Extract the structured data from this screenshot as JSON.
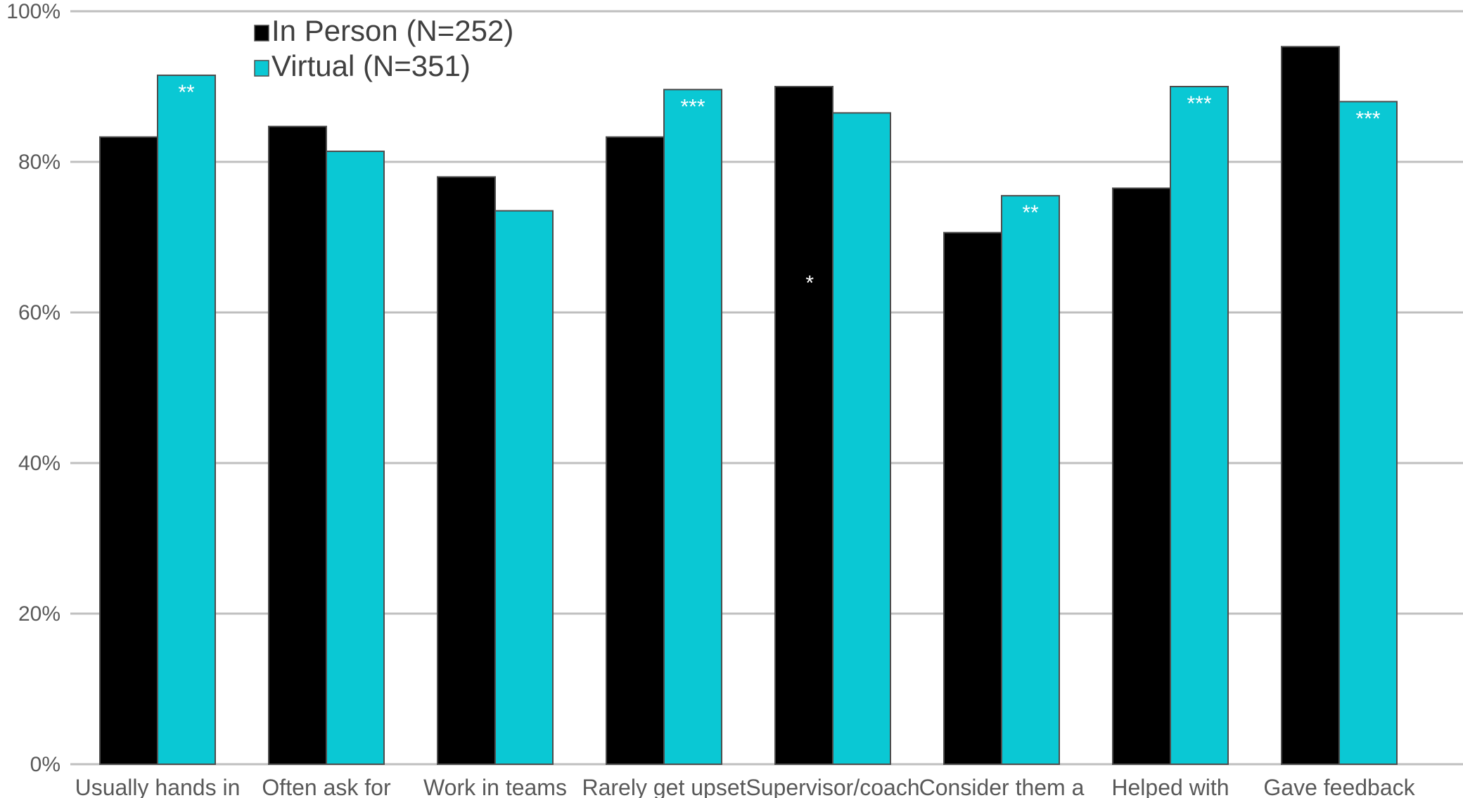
{
  "chart_data": {
    "type": "bar",
    "title": "",
    "xlabel": "",
    "ylabel": "",
    "ylim": [
      0,
      100
    ],
    "y_ticks": [
      "0%",
      "20%",
      "40%",
      "60%",
      "80%",
      "100%"
    ],
    "y_tick_values": [
      0,
      20,
      40,
      60,
      80,
      100
    ],
    "grid": true,
    "legend_position": "top-left",
    "categories": [
      "Usually hands in",
      "Often ask for",
      "Work in teams",
      "Rarely get upset",
      "Supervisor/coach",
      "Consider them a",
      "Helped with",
      "Gave feedback"
    ],
    "series": [
      {
        "name": "In Person (N=252)",
        "color": "#000000",
        "values": [
          83.3,
          84.7,
          78.0,
          83.3,
          90.0,
          70.6,
          76.5,
          95.3
        ]
      },
      {
        "name": "Virtual (N=351)",
        "color": "#0ac8d4",
        "values": [
          91.5,
          81.4,
          73.5,
          89.6,
          86.5,
          75.5,
          90.0,
          88.0
        ]
      }
    ],
    "significance": [
      "**",
      "",
      "",
      "***",
      "*",
      "**",
      "***",
      "***"
    ]
  }
}
